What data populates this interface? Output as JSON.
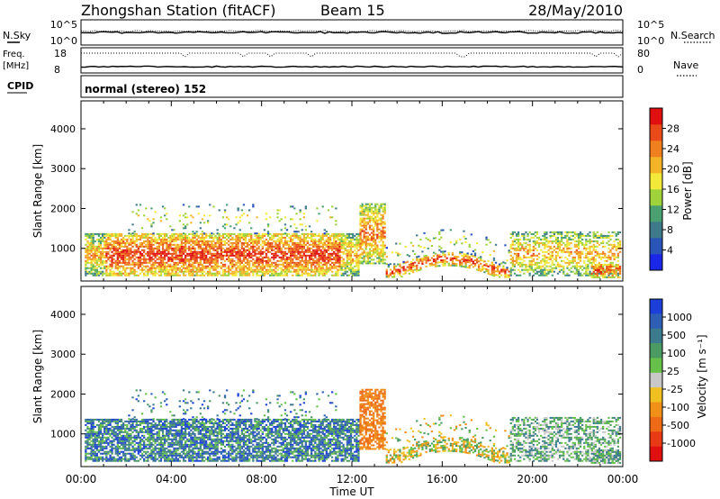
{
  "header": {
    "station": "Zhongshan Station (fitACF)",
    "beam": "Beam 15",
    "date": "28/May/2010"
  },
  "panels": {
    "nsky": {
      "left_label": "N.Sky",
      "left_ticks": [
        "10^5",
        "10^0"
      ],
      "right_label": "N.Search",
      "right_ticks": [
        "10^5",
        "10^0"
      ]
    },
    "freq": {
      "left_label_1": "Freq.",
      "left_label_2": "[MHz]",
      "left_ticks": [
        "18",
        "8"
      ],
      "right_label": "Nave",
      "right_ticks": [
        "80",
        "0"
      ]
    },
    "cpid": {
      "label": "CPID",
      "text": "normal (stereo) 152"
    }
  },
  "chart_data": [
    {
      "type": "heatmap",
      "name": "power",
      "xlabel": "",
      "ylabel": "Slant Range [km]",
      "x_ticks": [
        "00:00",
        "04:00",
        "08:00",
        "12:00",
        "16:00",
        "20:00",
        "00:00"
      ],
      "y_ticks": [
        "1000",
        "2000",
        "3000",
        "4000"
      ],
      "xlim": [
        0,
        24
      ],
      "ylim": [
        180,
        4700
      ],
      "colorbar": {
        "label": "Power [dB]",
        "ticks": [
          "4",
          "8",
          "12",
          "16",
          "20",
          "24",
          "28"
        ],
        "range": [
          0,
          32
        ],
        "colors": [
          "#1b27e8",
          "#2a55b8",
          "#3f7a8a",
          "#4aa070",
          "#9fd23b",
          "#f3e93a",
          "#f4b428",
          "#f0801f",
          "#ea4a1a",
          "#e01010"
        ]
      }
    },
    {
      "type": "heatmap",
      "name": "velocity",
      "xlabel": "Time UT",
      "ylabel": "Slant Range [km]",
      "x_ticks": [
        "00:00",
        "04:00",
        "08:00",
        "12:00",
        "16:00",
        "20:00",
        "00:00"
      ],
      "y_ticks": [
        "1000",
        "2000",
        "3000",
        "4000"
      ],
      "xlim": [
        0,
        24
      ],
      "ylim": [
        180,
        4700
      ],
      "colorbar": {
        "label": "Velocity [m s⁻¹]",
        "ticks": [
          "1000",
          "500",
          "100",
          "25",
          "-25",
          "-100",
          "-500",
          "-1000"
        ],
        "colors": [
          "#1b3fd8",
          "#2f5fb5",
          "#3c7a8e",
          "#4b9a62",
          "#67c04a",
          "#c8c8c8",
          "#f0c020",
          "#f09018",
          "#ee6a16",
          "#e83a14",
          "#e01010"
        ]
      }
    }
  ]
}
